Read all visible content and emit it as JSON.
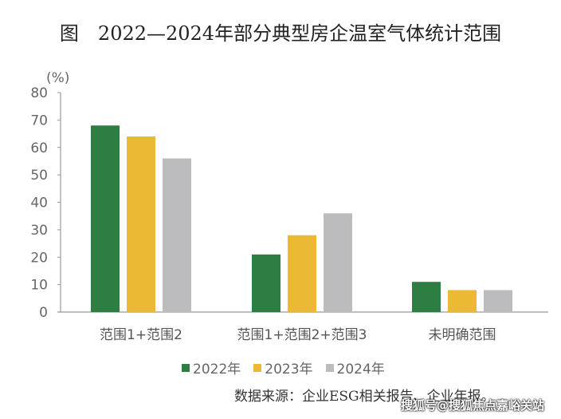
{
  "title": "图　2022—2024年部分典型房企温室气体统计范围",
  "watermark": "搜狐号@搜狐焦点嘉峪关站",
  "source": "数据来源：企业ESG相关报告、企业年报。",
  "chart_data": {
    "type": "bar",
    "title": "图　2022—2024年部分典型房企温室气体统计范围",
    "ylabel": "(%)",
    "xlabel": "",
    "ylim": [
      0,
      80
    ],
    "yticks": [
      0,
      10,
      20,
      30,
      40,
      50,
      60,
      70,
      80
    ],
    "categories": [
      "范围1+范围2",
      "范围1+范围2+范围3",
      "未明确范围"
    ],
    "series": [
      {
        "name": "2022年",
        "color": "#2e7d43",
        "values": [
          68,
          21,
          11
        ]
      },
      {
        "name": "2023年",
        "color": "#ecb935",
        "values": [
          64,
          28,
          8
        ]
      },
      {
        "name": "2024年",
        "color": "#bcbcbe",
        "values": [
          56,
          36,
          8
        ]
      }
    ],
    "grid": false,
    "legend": "bottom"
  }
}
